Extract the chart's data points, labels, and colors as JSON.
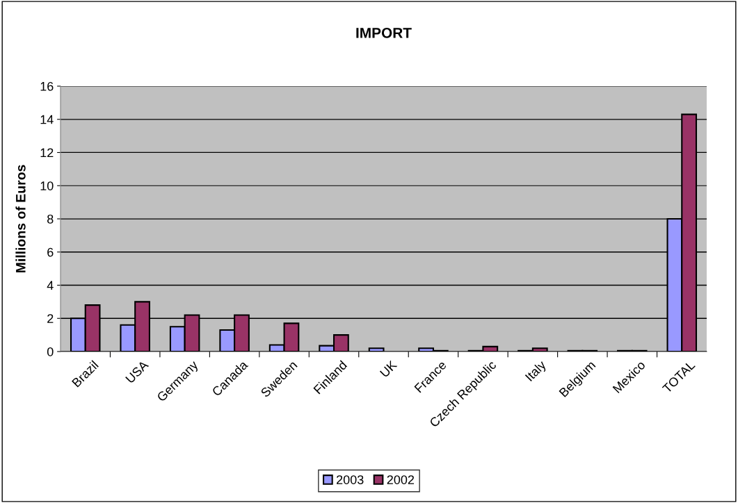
{
  "chart_data": {
    "type": "bar",
    "title": "IMPORT",
    "ylabel": "Millions of Euros",
    "categories": [
      "Brazil",
      "USA",
      "Germany",
      "Canada",
      "Sweden",
      "Finland",
      "UK",
      "France",
      "Czech Republic",
      "Italy",
      "Belgium",
      "Mexico",
      "TOTAL"
    ],
    "series": [
      {
        "name": "2003",
        "color": "#9999ff",
        "values": [
          2.0,
          1.6,
          1.5,
          1.3,
          0.4,
          0.35,
          0.2,
          0.2,
          0.05,
          0.05,
          0.05,
          0.05,
          8.0
        ]
      },
      {
        "name": "2002",
        "color": "#993366",
        "values": [
          2.8,
          3.0,
          2.2,
          2.2,
          1.7,
          1.0,
          null,
          0.05,
          0.3,
          0.2,
          0.05,
          0.05,
          14.3
        ]
      }
    ],
    "ylim": [
      0,
      16
    ],
    "yticks": [
      0,
      2,
      4,
      6,
      8,
      10,
      12,
      14,
      16
    ],
    "grid": "y",
    "legend": "bottom"
  }
}
